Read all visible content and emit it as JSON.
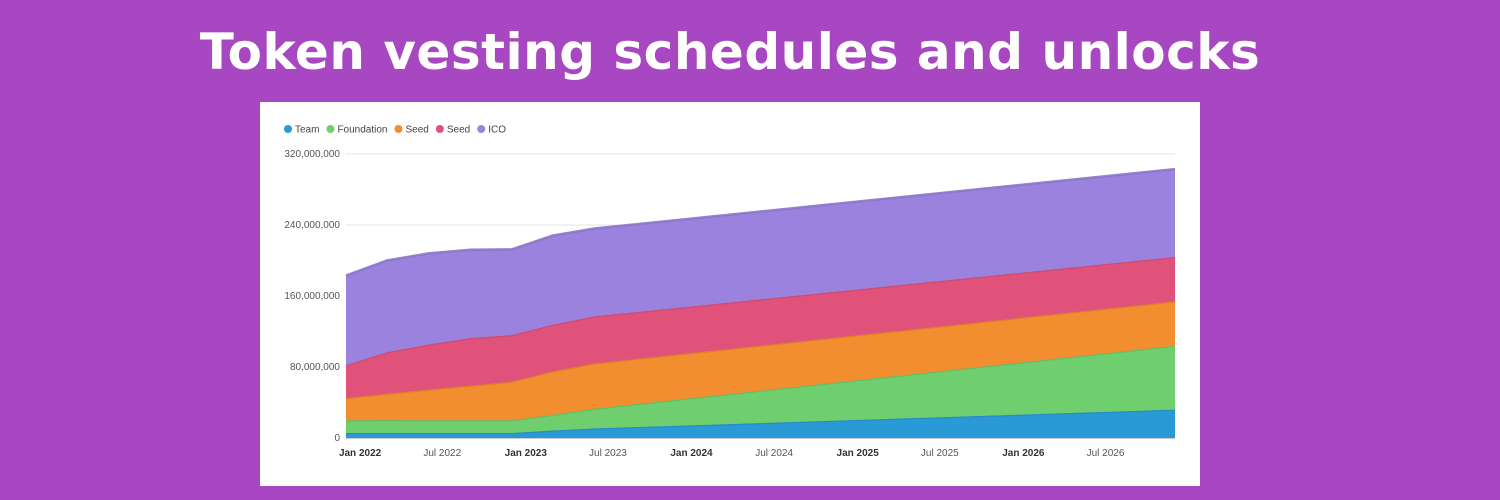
{
  "page": {
    "title": "Token vesting schedules and unlocks"
  },
  "chart_data": {
    "type": "area",
    "stacked": true,
    "title": "",
    "xlabel": "",
    "ylabel": "",
    "ylim": [
      0,
      320000000
    ],
    "grid": true,
    "legend_position": "top-left",
    "yticks": [
      {
        "value": 0,
        "label": "0"
      },
      {
        "value": 80000000,
        "label": "80,000,000"
      },
      {
        "value": 160000000,
        "label": "160,000,000"
      },
      {
        "value": 240000000,
        "label": "240,000,000"
      },
      {
        "value": 320000000,
        "label": "320,000,000"
      }
    ],
    "xticks": [
      {
        "value": "2022-01-01",
        "label": "Jan 2022",
        "major": true
      },
      {
        "value": "2022-07-01",
        "label": "Jul 2022",
        "major": false
      },
      {
        "value": "2023-01-01",
        "label": "Jan 2023",
        "major": true
      },
      {
        "value": "2023-07-01",
        "label": "Jul 2023",
        "major": false
      },
      {
        "value": "2024-01-01",
        "label": "Jan 2024",
        "major": true
      },
      {
        "value": "2024-07-01",
        "label": "Jul 2024",
        "major": false
      },
      {
        "value": "2025-01-01",
        "label": "Jan 2025",
        "major": true
      },
      {
        "value": "2025-07-01",
        "label": "Jul 2025",
        "major": false
      },
      {
        "value": "2026-01-01",
        "label": "Jan 2026",
        "major": true
      },
      {
        "value": "2026-07-01",
        "label": "Jul 2026",
        "major": false
      }
    ],
    "xdomain": [
      "2021-12-01",
      "2026-12-01"
    ],
    "x": [
      "2021-12-01",
      "2022-03-01",
      "2022-06-01",
      "2022-09-01",
      "2022-12-01",
      "2023-03-01",
      "2023-06-01",
      "2026-12-01"
    ],
    "series": [
      {
        "name": "Team",
        "color": "#2a9ad6",
        "values": [
          5600000,
          5600000,
          5600000,
          5600000,
          5600000,
          8400000,
          10800000,
          32000000
        ]
      },
      {
        "name": "Foundation",
        "color": "#6fcf6f",
        "values": [
          14400000,
          14600000,
          14500000,
          14400000,
          14300000,
          17600000,
          22200000,
          72000000
        ]
      },
      {
        "name": "Seed",
        "color": "#f28e2f",
        "values": [
          25000000,
          29700000,
          34500000,
          39000000,
          43600000,
          49000000,
          51000000,
          50000000
        ]
      },
      {
        "name": "Seed",
        "color": "#e0527a",
        "values": [
          37000000,
          46800000,
          50800000,
          53700000,
          52500000,
          52700000,
          53000000,
          50000000
        ]
      },
      {
        "name": "ICO",
        "color": "#9b82de",
        "values": [
          101000000,
          103300000,
          102600000,
          99300000,
          96500000,
          100400000,
          99000000,
          99000000
        ]
      }
    ]
  }
}
